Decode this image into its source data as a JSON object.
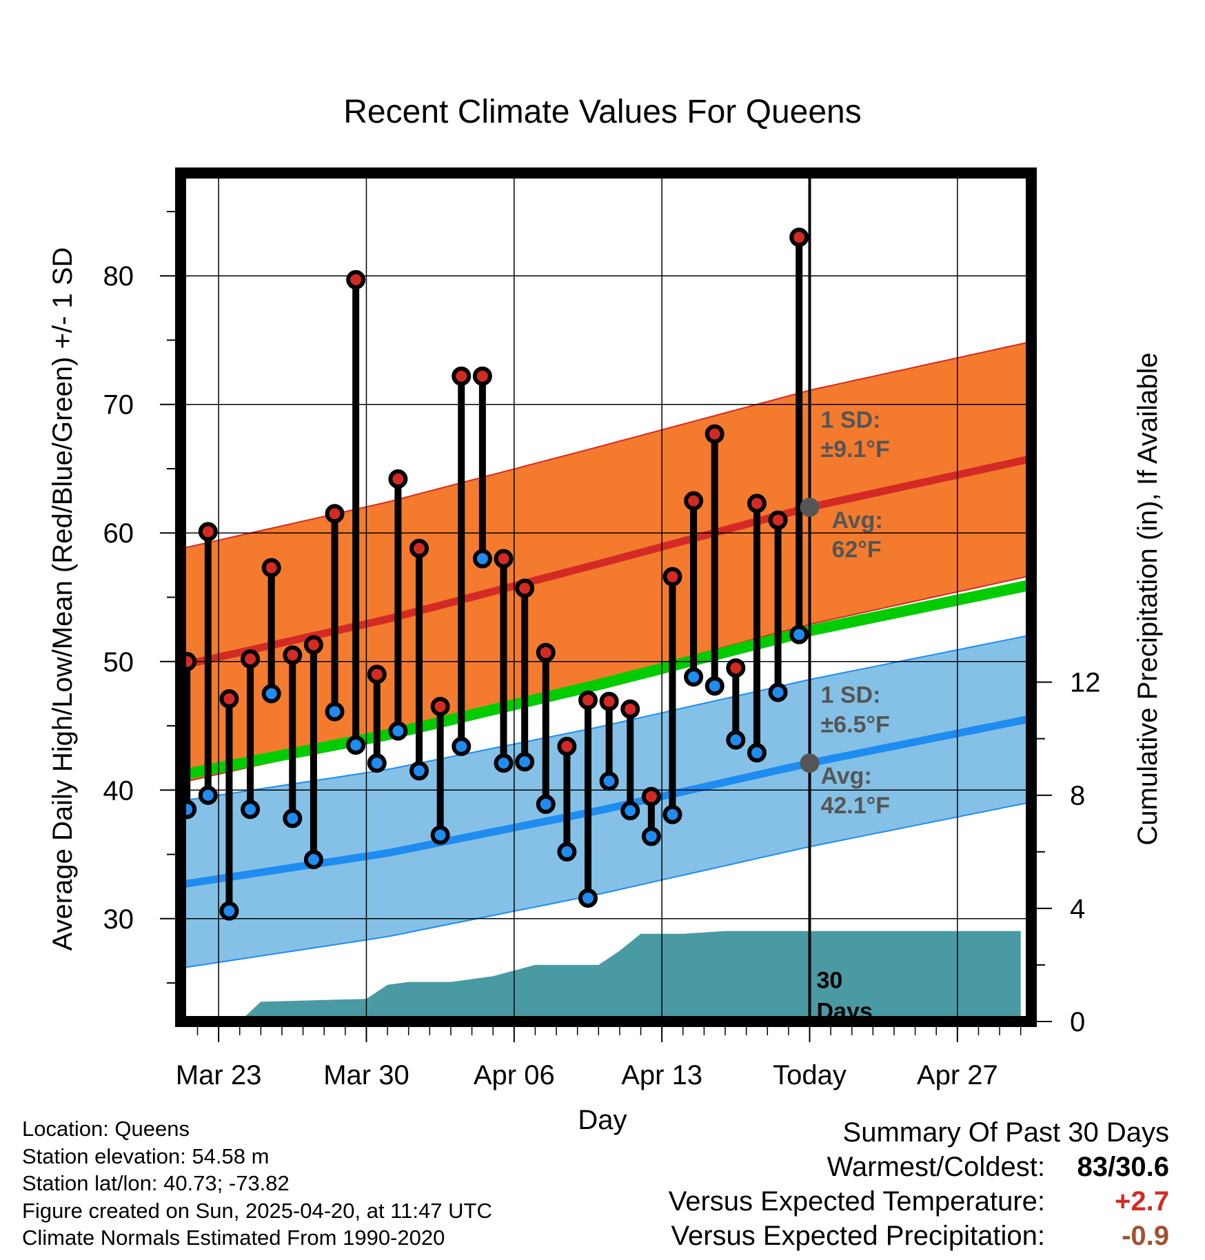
{
  "chart_data": {
    "type": "line",
    "title": "Recent Climate Values For Queens",
    "xlabel": "Day",
    "ylabel": "Average Daily High/Low/Mean (Red/Blue/Green) +/- 1 SD",
    "y2label": "Cumulative Precipitation (in), If Available",
    "ylim": [
      22,
      88
    ],
    "y2lim": [
      0,
      30
    ],
    "yticks": [
      "30",
      "40",
      "50",
      "60",
      "70",
      "80"
    ],
    "y2ticks": [
      "0",
      "4",
      "8",
      "12"
    ],
    "xticks": [
      "Mar 23",
      "Mar 30",
      "Apr 06",
      "Apr 13",
      "Today",
      "Apr 27"
    ],
    "xrange_days": [
      -29.8,
      10.5
    ],
    "xtick_days": [
      -28,
      -21,
      -14,
      -7,
      0,
      7
    ],
    "grid": true,
    "daily": {
      "day_offset": [
        -30,
        -29,
        -28,
        -27,
        -26,
        -25,
        -24,
        -23,
        -22,
        -21,
        -20,
        -19,
        -18,
        -17,
        -16,
        -15,
        -14,
        -13,
        -12,
        -11,
        -10,
        -9,
        -8,
        -7,
        -6,
        -5,
        -4,
        -3,
        -2,
        -1
      ],
      "high": [
        50.0,
        60.1,
        47.1,
        50.2,
        57.3,
        50.5,
        51.3,
        61.5,
        79.7,
        49.0,
        64.2,
        58.8,
        46.5,
        72.2,
        72.2,
        58.0,
        55.7,
        50.7,
        43.4,
        47.0,
        46.9,
        46.3,
        39.5,
        56.6,
        62.5,
        67.7,
        49.5,
        62.3,
        61.0,
        83.0
      ],
      "low": [
        38.5,
        39.6,
        30.6,
        38.5,
        47.5,
        37.8,
        34.6,
        46.1,
        43.5,
        42.1,
        44.6,
        41.5,
        36.5,
        43.4,
        58.0,
        42.1,
        42.2,
        38.9,
        35.2,
        31.6,
        40.7,
        38.4,
        36.4,
        38.1,
        48.8,
        48.1,
        43.9,
        42.9,
        47.6,
        52.1
      ]
    },
    "normals": {
      "day_offset": [
        -30,
        -20,
        -10,
        0,
        10
      ],
      "high_avg": [
        49.6,
        53.3,
        57.6,
        62.0,
        65.6
      ],
      "high_sd": 9.1,
      "low_avg": [
        32.6,
        35.1,
        38.4,
        42.1,
        45.4
      ],
      "low_sd": 6.5,
      "mean_avg": [
        41.1,
        44.3,
        48.2,
        52.4,
        55.8
      ]
    },
    "precipitation": {
      "day_offset": [
        -27,
        -26,
        -21,
        -20,
        -19,
        -17,
        -15,
        -13,
        -11,
        -10,
        -9,
        -8,
        -7,
        -6,
        -4,
        10
      ],
      "cumulative": [
        0.0,
        0.7,
        0.8,
        1.3,
        1.4,
        1.4,
        1.6,
        2.0,
        2.0,
        2.0,
        2.5,
        3.1,
        3.1,
        3.1,
        3.2,
        3.2
      ]
    },
    "annotations": {
      "high_sd_label": "1 SD:",
      "high_sd_value": "±9.1°F",
      "high_avg_label": "Avg:",
      "high_avg_value": "62°F",
      "low_sd_label": "1 SD:",
      "low_sd_value": "±6.5°F",
      "low_avg_label": "Avg:",
      "low_avg_value": "42.1°F",
      "window_line1": "30",
      "window_line2": "Days"
    },
    "colors": {
      "high_band": "#f47b2e",
      "high_line": "#d42a24",
      "low_band": "#85c1e6",
      "low_line": "#1e8cf0",
      "mean_line": "#00cc00",
      "precip": "#4a9aa3",
      "high_dot": "#d42a24",
      "low_dot": "#1e8cf0",
      "annotation": "#555555"
    }
  },
  "footer": {
    "location": "Location: Queens",
    "elevation": "Station elevation: 54.58 m",
    "latlon": "Station lat/lon: 40.73; -73.82",
    "created": "Figure created on Sun, 2025-04-20, at 11:47 UTC",
    "normals": "Climate Normals Estimated From 1990-2020"
  },
  "summary": {
    "title": "Summary Of Past 30 Days",
    "warmest_label": "Warmest/Coldest:",
    "warmest_value": "83/30.6",
    "temp_label": "Versus Expected Temperature:",
    "temp_value": "+2.7",
    "temp_color": "#d42a24",
    "precip_label": "Versus Expected Precipitation:",
    "precip_value": "-0.9",
    "precip_color": "#a0522d"
  }
}
